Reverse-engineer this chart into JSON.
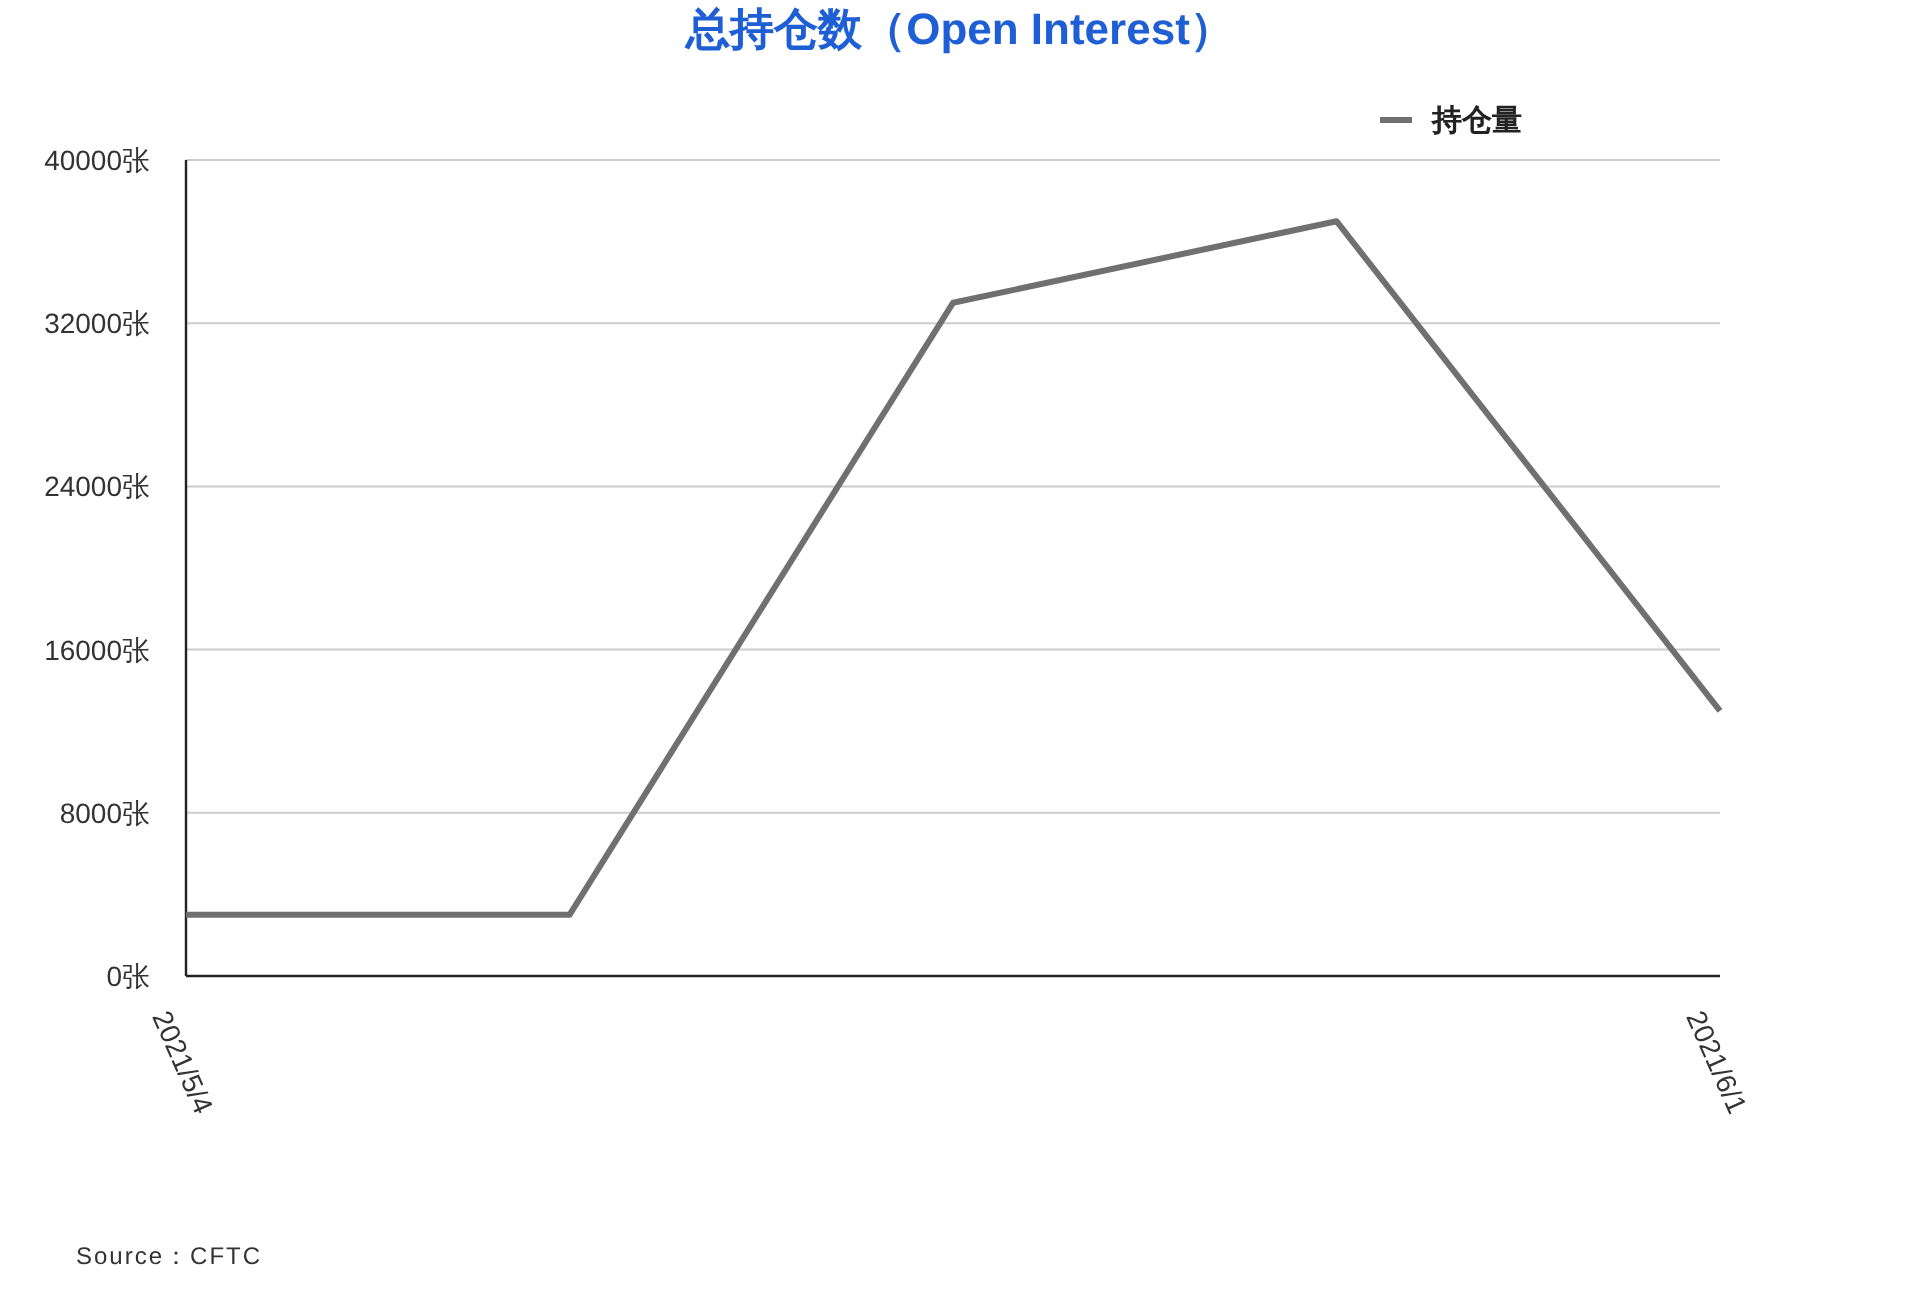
{
  "chart_data": {
    "type": "line",
    "title": "总持仓数（Open Interest）",
    "categories": [
      "2021/5/4",
      null,
      null,
      null,
      "2021/6/1"
    ],
    "series": [
      {
        "name": "持仓量",
        "color": "#707070",
        "values": [
          3000,
          3000,
          33000,
          37000,
          13000
        ]
      }
    ],
    "ylim": [
      0,
      40000
    ],
    "yticks": [
      {
        "value": 0,
        "label": "0张"
      },
      {
        "value": 8000,
        "label": "8000张"
      },
      {
        "value": 16000,
        "label": "16000张"
      },
      {
        "value": 24000,
        "label": "24000张"
      },
      {
        "value": 32000,
        "label": "32000张"
      },
      {
        "value": 40000,
        "label": "40000张"
      }
    ],
    "grid": "y",
    "legend": "top right",
    "marker": "none",
    "line_style": "solid",
    "annotations": [
      "Source：CFTC"
    ]
  }
}
